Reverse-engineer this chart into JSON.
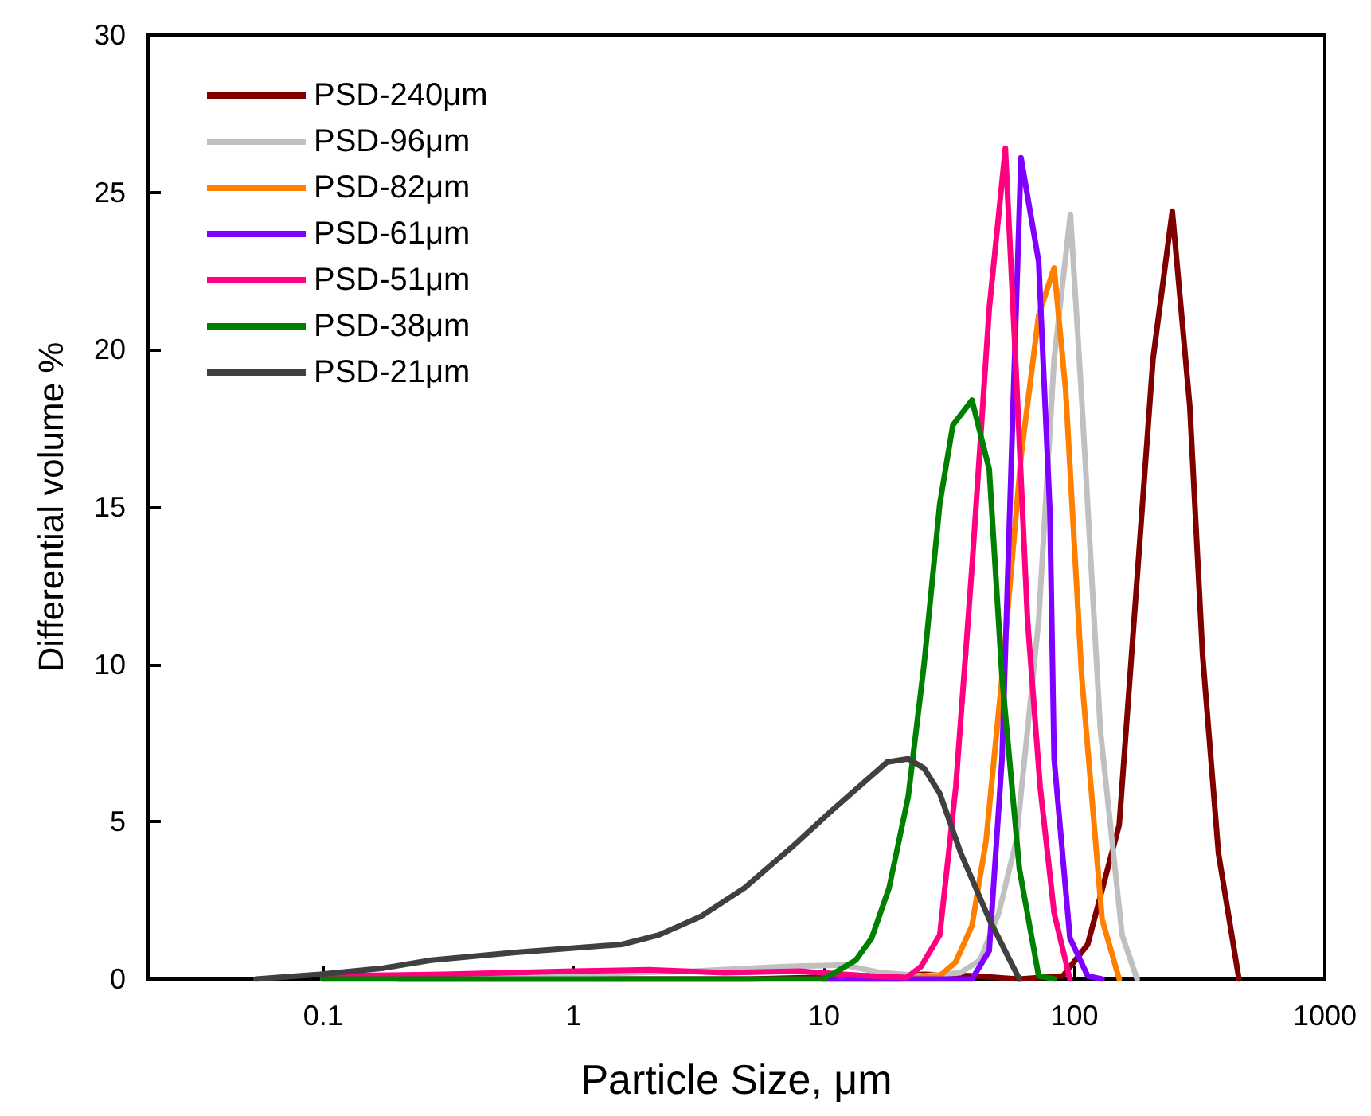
{
  "chart_data": {
    "type": "line",
    "xlabel": "Particle Size, μm",
    "ylabel": "Differential volume %",
    "log": "x",
    "xlim": [
      0.02,
      1000
    ],
    "xticks": [
      0.1,
      1,
      10,
      100,
      1000
    ],
    "ylim": [
      0,
      30
    ],
    "yticks": [
      0,
      5,
      10,
      15,
      20,
      25,
      30
    ],
    "grid": false,
    "legend": "top left",
    "marker": "none",
    "line_style": "solid",
    "series": [
      {
        "name": "PSD-240μm",
        "color": "#800000",
        "x": [
          0.2,
          1,
          5,
          25,
          40,
          60,
          90,
          113,
          151,
          206,
          246,
          289,
          325,
          376,
          454
        ],
        "values": [
          0,
          0,
          0,
          0.15,
          0.1,
          0,
          0.1,
          1.1,
          4.9,
          19.7,
          24.4,
          18.2,
          10.3,
          4.0,
          0
        ]
      },
      {
        "name": "PSD-96μm",
        "color": "#c0c0c0",
        "x": [
          0.1,
          1,
          3,
          7,
          12,
          17,
          25,
          35,
          42,
          49.9,
          58.6,
          72,
          83,
          96.4,
          107,
          127,
          155,
          178
        ],
        "values": [
          0,
          0.15,
          0.25,
          0.4,
          0.45,
          0.2,
          0.1,
          0.2,
          0.6,
          2.1,
          4.4,
          11.4,
          19.7,
          24.3,
          18.4,
          7.9,
          1.4,
          0
        ]
      },
      {
        "name": "PSD-82μm",
        "color": "#ff8000",
        "x": [
          10,
          20,
          29,
          33.6,
          39,
          44.4,
          51.4,
          61.2,
          72,
          83,
          92.3,
          107,
          129,
          151
        ],
        "values": [
          0,
          0,
          0.1,
          0.55,
          1.7,
          4.4,
          9.6,
          16.6,
          21.1,
          22.6,
          18.7,
          9.6,
          1.9,
          0
        ]
      },
      {
        "name": "PSD-61μm",
        "color": "#8000ff",
        "x": [
          10,
          39,
          45.7,
          51.4,
          57,
          61.2,
          72,
          79.8,
          83,
          96,
          113,
          129
        ],
        "values": [
          0,
          0,
          0.9,
          7.0,
          18.4,
          26.1,
          22.8,
          14.9,
          7.0,
          1.3,
          0.1,
          0
        ]
      },
      {
        "name": "PSD-51μm",
        "color": "#ff0080",
        "x": [
          0.1,
          0.3,
          1,
          2,
          4,
          8,
          15,
          21.4,
          24.4,
          29,
          33.6,
          39,
          45.7,
          53,
          58.6,
          65,
          73,
          83,
          96
        ],
        "values": [
          0.1,
          0.15,
          0.25,
          0.3,
          0.2,
          0.25,
          0.1,
          0.05,
          0.4,
          1.4,
          6.1,
          13.1,
          21.3,
          26.4,
          19.2,
          11.4,
          6.1,
          2.1,
          0
        ]
      },
      {
        "name": "PSD-38μm",
        "color": "#008000",
        "x": [
          0.1,
          10,
          13.4,
          15.5,
          18.2,
          21.7,
          25.1,
          29,
          32.7,
          39,
          45.7,
          51.4,
          60.3,
          72,
          83
        ],
        "values": [
          0,
          0,
          0.6,
          1.3,
          2.9,
          5.8,
          10.0,
          15.1,
          17.6,
          18.4,
          16.2,
          9.6,
          3.5,
          0.1,
          0
        ]
      },
      {
        "name": "PSD-21μm",
        "color": "#404040",
        "x": [
          0.054,
          0.097,
          0.174,
          0.27,
          0.586,
          1.56,
          2.19,
          3.24,
          4.82,
          7.46,
          10.9,
          17.9,
          21.7,
          25.1,
          29,
          35.2,
          45.7,
          60.3
        ],
        "values": [
          0,
          0.15,
          0.35,
          0.6,
          0.85,
          1.1,
          1.4,
          2.0,
          2.9,
          4.2,
          5.4,
          6.9,
          7.0,
          6.7,
          5.9,
          4.0,
          1.9,
          0
        ]
      }
    ]
  }
}
